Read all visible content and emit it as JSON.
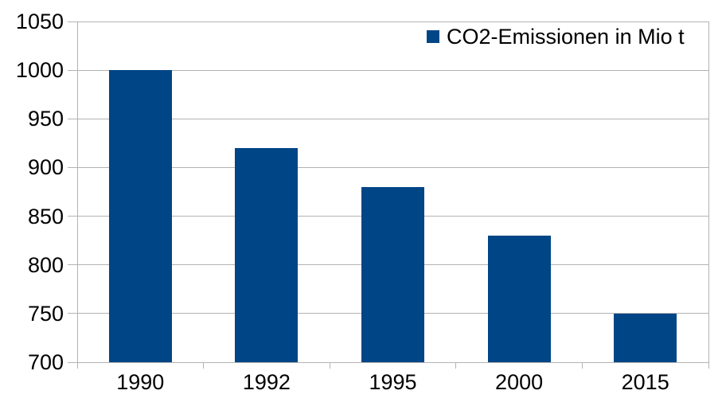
{
  "chart_data": {
    "type": "bar",
    "categories": [
      "1990",
      "1992",
      "1995",
      "2000",
      "2015"
    ],
    "series": [
      {
        "name": "CO2-Emissionen in Mio t",
        "values": [
          1000,
          920,
          880,
          830,
          750
        ]
      }
    ],
    "title": "",
    "xlabel": "",
    "ylabel": "",
    "yticks": [
      700,
      750,
      800,
      850,
      900,
      950,
      1000,
      1050
    ],
    "ylim": [
      700,
      1050
    ],
    "ytick_step": 50,
    "grid": "horizontal",
    "legend": {
      "label": "CO2-Emissionen in Mio t",
      "position": "top-right-inside"
    },
    "colors": {
      "bar": "#004586",
      "gridline": "#b3b3b3",
      "text": "#000000",
      "background": "#ffffff"
    }
  }
}
